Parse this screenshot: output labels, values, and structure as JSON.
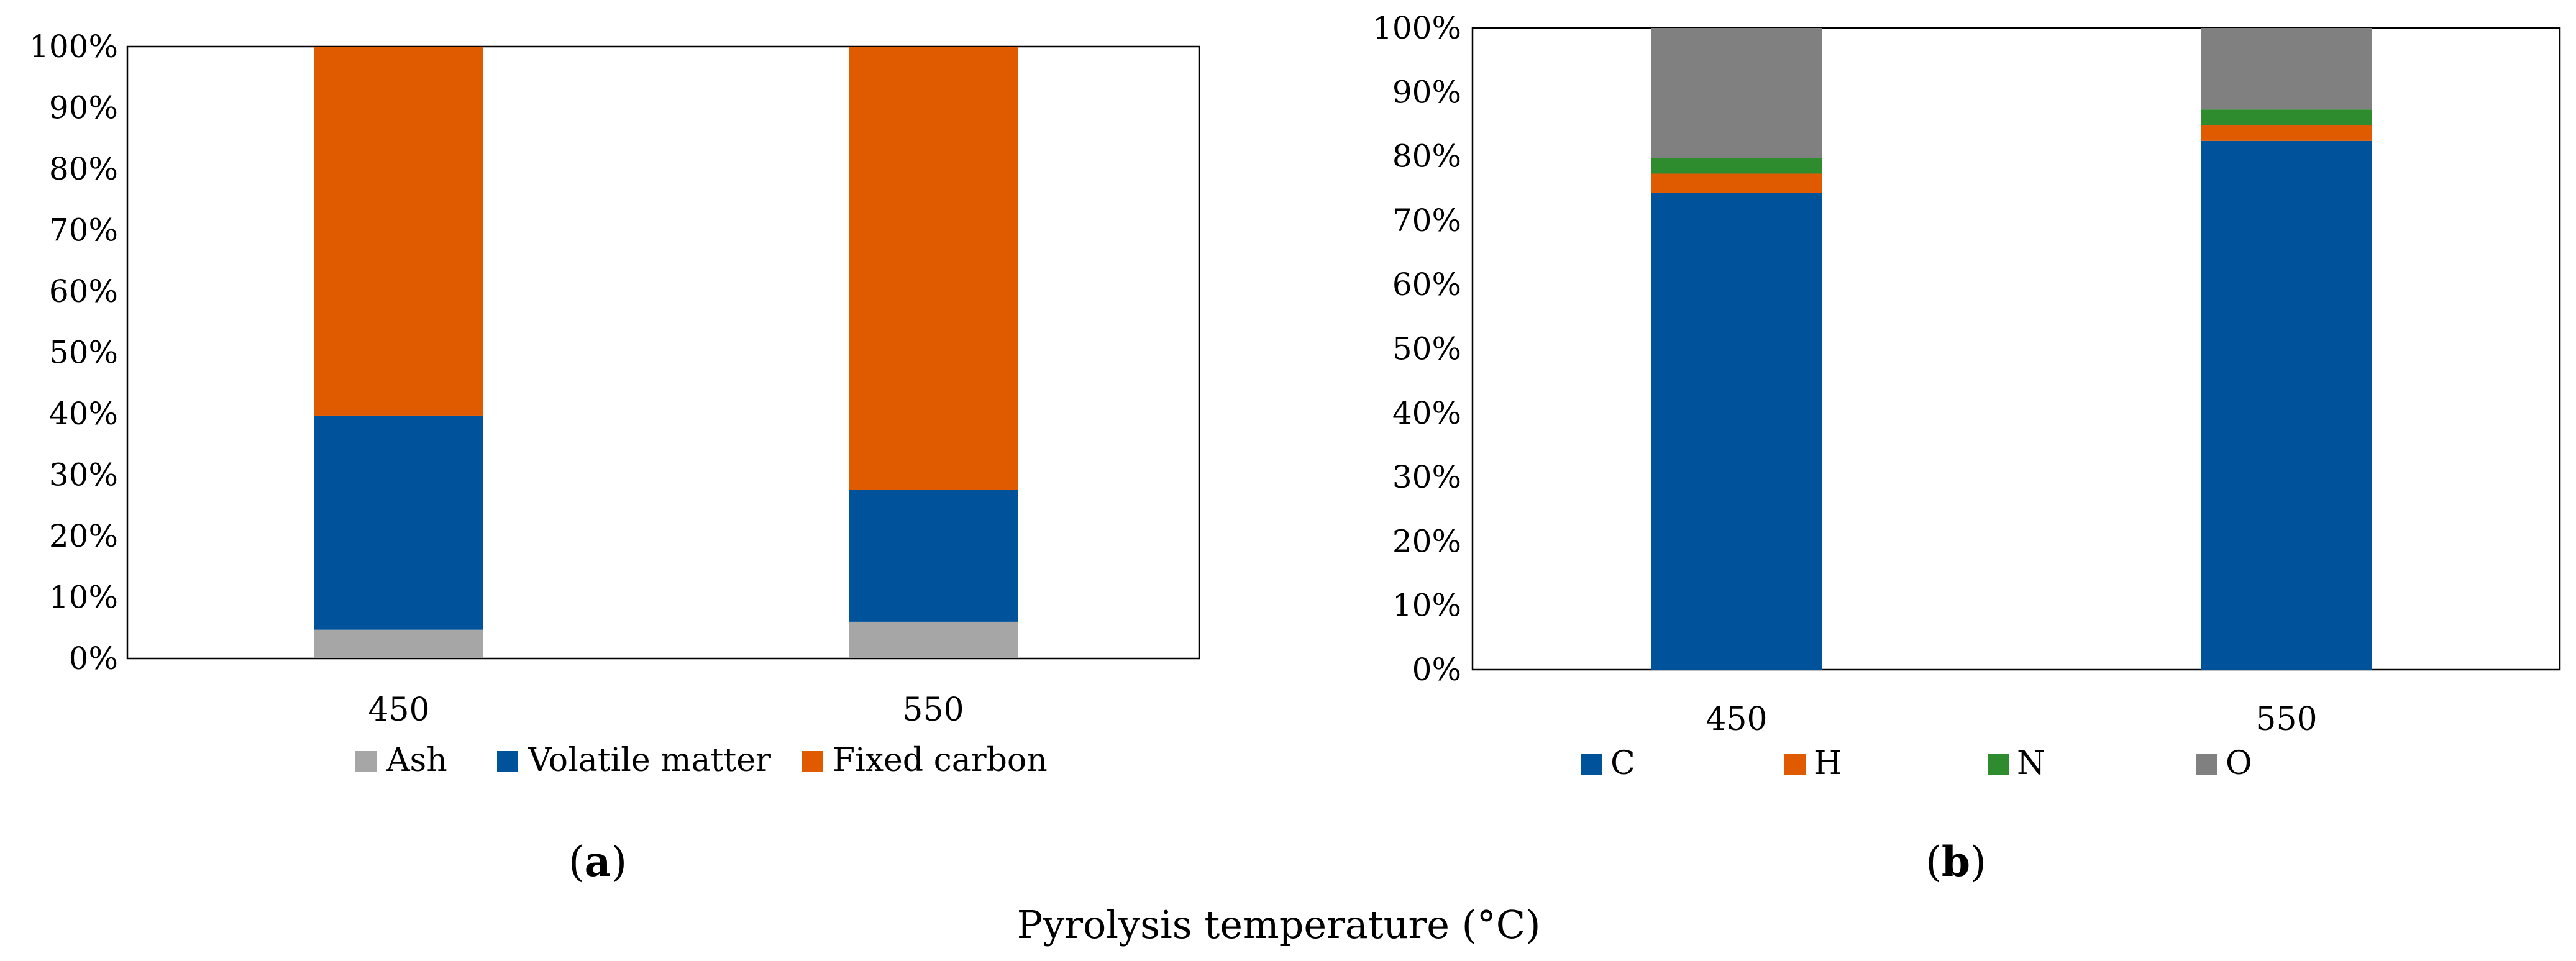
{
  "figure": {
    "caption": "Pyrolysis temperature (°C)"
  },
  "colors": {
    "Ash": "#a6a6a6",
    "Volatile matter": "#00529b",
    "Fixed carbon": "#e05a00",
    "C": "#00529b",
    "H": "#e05a00",
    "N": "#2e8b2e",
    "O": "#808080"
  },
  "chart_data": [
    {
      "id": "a",
      "panel_label": "(a)",
      "type": "bar",
      "stacked": true,
      "normalized": true,
      "categories": [
        "450",
        "550"
      ],
      "series": [
        {
          "name": "Ash",
          "values": [
            4.7,
            6.0
          ]
        },
        {
          "name": "Volatile matter",
          "values": [
            35.0,
            21.6
          ]
        },
        {
          "name": "Fixed carbon",
          "values": [
            60.3,
            72.4
          ]
        }
      ],
      "yticks": [
        "0%",
        "10%",
        "20%",
        "30%",
        "40%",
        "50%",
        "60%",
        "70%",
        "80%",
        "90%",
        "100%"
      ],
      "ylim": [
        0,
        100
      ],
      "title": "",
      "xlabel": "",
      "ylabel": "",
      "legend": "bottom"
    },
    {
      "id": "b",
      "panel_label": "(b)",
      "type": "bar",
      "stacked": true,
      "normalized": true,
      "categories": [
        "450",
        "550"
      ],
      "series": [
        {
          "name": "C",
          "values": [
            74.3,
            82.4
          ]
        },
        {
          "name": "H",
          "values": [
            3.0,
            2.4
          ]
        },
        {
          "name": "N",
          "values": [
            2.4,
            2.5
          ]
        },
        {
          "name": "O",
          "values": [
            20.3,
            12.7
          ]
        }
      ],
      "yticks": [
        "0%",
        "10%",
        "20%",
        "30%",
        "40%",
        "50%",
        "60%",
        "70%",
        "80%",
        "90%",
        "100%"
      ],
      "ylim": [
        0,
        100
      ],
      "title": "",
      "xlabel": "",
      "ylabel": "",
      "legend": "bottom"
    }
  ]
}
